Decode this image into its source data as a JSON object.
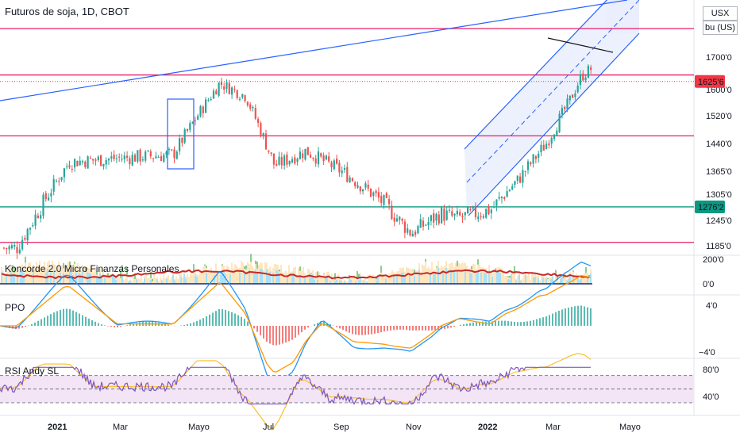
{
  "header": {
    "title": "Futuros de soja, 1D, CBOT"
  },
  "price_scale": {
    "currency": "USX",
    "unit": "bu (US)"
  },
  "panes": {
    "koncorde": {
      "label": "Koncorde 2.0 Micro Finanzas Personales",
      "ticks": [
        "200'0",
        "0'0"
      ]
    },
    "ppo": {
      "label": "PPO",
      "ticks": [
        "4'0",
        "−4'0"
      ]
    },
    "rsi": {
      "label": "RSI Andy SL",
      "ticks": [
        "80'0",
        "40'0"
      ]
    }
  },
  "colors": {
    "up": "#26a69a",
    "down": "#ef5350",
    "hline": "#e91e63",
    "hline_green": "#089981",
    "trend": "#2962ff",
    "price_tag": "#f23645",
    "rsi_line": "#7e57c2",
    "rsi_band": "#f3e5f5",
    "ppo_fast": "#2196f3",
    "ppo_slow": "#ff9800",
    "volume_box": "#2962ff"
  },
  "chart_data": {
    "type": "candlestick",
    "title": "Futuros de soja, 1D, CBOT",
    "x_ticks": [
      "2021",
      "Mar",
      "Mayo",
      "Jul",
      "Sep",
      "Nov",
      "2022",
      "Mar",
      "Mayo"
    ],
    "y_ticks": [
      "1700'0",
      "1600'0",
      "1520'0",
      "1440'0",
      "1365'0",
      "1305'0",
      "1245'0",
      "1185'0"
    ],
    "y_axis": "log",
    "last_price_label": "1625'6",
    "level_label": "1276'2",
    "horizontal_levels": [
      1802,
      1645,
      1462,
      1276,
      1193
    ],
    "series": [
      {
        "name": "price",
        "dates": [
          "2020-12-01",
          "2021-01-12",
          "2021-02-20",
          "2021-04-05",
          "2021-05-12",
          "2021-06-02",
          "2021-06-25",
          "2021-07-20",
          "2021-08-20",
          "2021-09-20",
          "2021-10-12",
          "2021-11-05",
          "2021-11-18",
          "2021-12-15",
          "2022-01-05",
          "2022-01-28",
          "2022-02-15",
          "2022-02-25",
          "2022-03-10",
          "2022-03-25"
        ],
        "close": [
          1180,
          1390,
          1400,
          1410,
          1620,
          1580,
          1380,
          1420,
          1360,
          1285,
          1215,
          1260,
          1250,
          1270,
          1340,
          1440,
          1560,
          1640,
          1680,
          1625
        ]
      }
    ],
    "rsi": {
      "range": [
        20,
        100
      ],
      "levels": [
        70,
        50,
        30
      ]
    },
    "ppo": {
      "range": [
        -4,
        5
      ]
    },
    "koncorde": {
      "range": [
        -100,
        220
      ]
    }
  }
}
